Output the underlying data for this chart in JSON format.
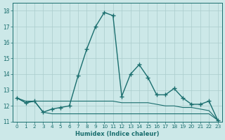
{
  "xlabel": "Humidex (Indice chaleur)",
  "background_color": "#cce8e8",
  "grid_color": "#aacccc",
  "line_color": "#1a6e6e",
  "xlim": [
    -0.5,
    23.5
  ],
  "ylim": [
    11.0,
    18.5
  ],
  "yticks": [
    11,
    12,
    13,
    14,
    15,
    16,
    17,
    18
  ],
  "xticks": [
    0,
    1,
    2,
    3,
    4,
    5,
    6,
    7,
    8,
    9,
    10,
    11,
    12,
    13,
    14,
    15,
    16,
    17,
    18,
    19,
    20,
    21,
    22,
    23
  ],
  "series": [
    {
      "x": [
        0,
        1,
        2,
        3,
        4,
        5,
        6,
        7,
        8,
        9,
        10,
        11,
        12,
        13,
        14,
        15,
        16,
        17,
        18,
        19,
        20,
        21,
        22,
        23
      ],
      "y": [
        12.5,
        12.2,
        12.3,
        11.6,
        11.8,
        11.9,
        12.0,
        13.9,
        15.6,
        17.0,
        17.9,
        17.7,
        12.6,
        14.0,
        14.6,
        13.8,
        12.7,
        12.7,
        13.1,
        12.5,
        12.1,
        12.1,
        12.3,
        11.1
      ],
      "linestyle": "-",
      "marker": "+",
      "markersize": 4,
      "linewidth": 1.0
    },
    {
      "x": [
        0,
        1,
        2,
        3,
        4,
        5,
        6,
        7,
        8,
        9,
        10,
        11,
        12,
        13,
        14,
        15,
        16,
        17,
        18,
        19,
        20,
        21,
        22,
        23
      ],
      "y": [
        12.5,
        12.3,
        12.3,
        12.3,
        12.3,
        12.3,
        12.3,
        12.3,
        12.3,
        12.3,
        12.3,
        12.3,
        12.2,
        12.2,
        12.2,
        12.2,
        12.1,
        12.0,
        12.0,
        11.9,
        11.9,
        11.8,
        11.7,
        11.1
      ],
      "linestyle": "-",
      "marker": null,
      "markersize": 0,
      "linewidth": 0.8
    },
    {
      "x": [
        0,
        1,
        2,
        3,
        4,
        5,
        6,
        7,
        8,
        9,
        10,
        11,
        12,
        13,
        14,
        15,
        16,
        17,
        18,
        19,
        20,
        21,
        22,
        23
      ],
      "y": [
        12.5,
        12.2,
        12.3,
        11.6,
        11.5,
        11.5,
        11.5,
        11.5,
        11.5,
        11.5,
        11.5,
        11.5,
        11.5,
        11.5,
        11.5,
        11.5,
        11.5,
        11.5,
        11.5,
        11.5,
        11.5,
        11.5,
        11.5,
        11.1
      ],
      "linestyle": "-",
      "marker": null,
      "markersize": 0,
      "linewidth": 0.8
    }
  ]
}
